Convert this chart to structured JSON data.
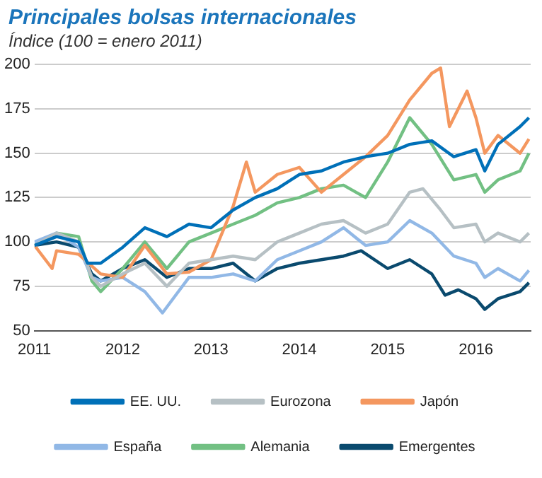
{
  "chart_data": {
    "type": "line",
    "title": "Principales bolsas internacionales",
    "subtitle": "Índice (100 = enero 2011)",
    "xlim": [
      2011,
      2016.62
    ],
    "xticks": [
      2011,
      2012,
      2013,
      2014,
      2015,
      2016
    ],
    "ylim": [
      50,
      200
    ],
    "yticks": [
      50,
      75,
      100,
      125,
      150,
      175,
      200
    ],
    "grid": "y",
    "legend": "bottom",
    "marker": "none",
    "line_style": "solid",
    "series": [
      {
        "name": "EE. UU.",
        "color": "#0070b8",
        "x": [
          2011,
          2011.25,
          2011.5,
          2011.6,
          2011.75,
          2012,
          2012.25,
          2012.5,
          2012.75,
          2013,
          2013.25,
          2013.5,
          2013.75,
          2014,
          2014.25,
          2014.5,
          2014.75,
          2015,
          2015.25,
          2015.5,
          2015.75,
          2016,
          2016.1,
          2016.25,
          2016.5,
          2016.6
        ],
        "values": [
          98,
          103,
          100,
          88,
          88,
          97,
          108,
          103,
          110,
          108,
          118,
          125,
          130,
          138,
          140,
          145,
          148,
          150,
          155,
          157,
          148,
          152,
          140,
          155,
          165,
          170
        ]
      },
      {
        "name": "Eurozona",
        "color": "#b6c0c4",
        "x": [
          2011,
          2011.25,
          2011.5,
          2011.65,
          2011.75,
          2012,
          2012.25,
          2012.5,
          2012.75,
          2013,
          2013.25,
          2013.5,
          2013.75,
          2014,
          2014.25,
          2014.5,
          2014.75,
          2015,
          2015.25,
          2015.4,
          2015.6,
          2015.75,
          2016,
          2016.1,
          2016.25,
          2016.5,
          2016.6
        ],
        "values": [
          98,
          105,
          100,
          80,
          75,
          82,
          88,
          75,
          88,
          90,
          92,
          90,
          100,
          105,
          110,
          112,
          105,
          110,
          128,
          130,
          118,
          108,
          110,
          100,
          105,
          100,
          105
        ]
      },
      {
        "name": "Japón",
        "color": "#f4975f",
        "x": [
          2011,
          2011.2,
          2011.25,
          2011.5,
          2011.75,
          2012,
          2012.25,
          2012.5,
          2012.75,
          2013,
          2013.25,
          2013.4,
          2013.5,
          2013.75,
          2014,
          2014.25,
          2014.5,
          2014.75,
          2015,
          2015.25,
          2015.5,
          2015.6,
          2015.7,
          2015.9,
          2016,
          2016.1,
          2016.25,
          2016.5,
          2016.6
        ],
        "values": [
          98,
          85,
          95,
          93,
          82,
          80,
          98,
          82,
          83,
          90,
          120,
          145,
          128,
          138,
          142,
          128,
          138,
          148,
          160,
          180,
          195,
          198,
          165,
          185,
          170,
          150,
          160,
          150,
          158
        ]
      },
      {
        "name": "España",
        "color": "#91b8e6",
        "x": [
          2011,
          2011.25,
          2011.5,
          2011.65,
          2011.75,
          2012,
          2012.25,
          2012.45,
          2012.75,
          2013,
          2013.25,
          2013.5,
          2013.75,
          2014,
          2014.25,
          2014.5,
          2014.75,
          2015,
          2015.25,
          2015.5,
          2015.75,
          2016,
          2016.1,
          2016.25,
          2016.5,
          2016.6
        ],
        "values": [
          100,
          105,
          97,
          80,
          78,
          80,
          72,
          60,
          80,
          80,
          82,
          78,
          90,
          95,
          100,
          108,
          98,
          100,
          112,
          105,
          92,
          88,
          80,
          85,
          78,
          84
        ]
      },
      {
        "name": "Alemania",
        "color": "#72c083",
        "x": [
          2011,
          2011.25,
          2011.5,
          2011.65,
          2011.75,
          2012,
          2012.25,
          2012.5,
          2012.75,
          2013,
          2013.25,
          2013.5,
          2013.75,
          2014,
          2014.25,
          2014.5,
          2014.75,
          2015,
          2015.25,
          2015.5,
          2015.75,
          2016,
          2016.1,
          2016.25,
          2016.5,
          2016.6
        ],
        "values": [
          98,
          105,
          103,
          78,
          72,
          85,
          100,
          85,
          100,
          105,
          110,
          115,
          122,
          125,
          130,
          132,
          125,
          145,
          170,
          155,
          135,
          138,
          128,
          135,
          140,
          150
        ]
      },
      {
        "name": "Emergentes",
        "color": "#0a4a6e",
        "x": [
          2011,
          2011.25,
          2011.5,
          2011.65,
          2011.75,
          2012,
          2012.25,
          2012.5,
          2012.75,
          2013,
          2013.25,
          2013.5,
          2013.75,
          2014,
          2014.25,
          2014.5,
          2014.7,
          2015,
          2015.25,
          2015.5,
          2015.65,
          2015.8,
          2016,
          2016.1,
          2016.25,
          2016.5,
          2016.6
        ],
        "values": [
          98,
          100,
          97,
          82,
          78,
          85,
          90,
          80,
          85,
          85,
          88,
          78,
          85,
          88,
          90,
          92,
          95,
          85,
          90,
          82,
          70,
          73,
          68,
          62,
          68,
          72,
          77
        ]
      }
    ]
  }
}
